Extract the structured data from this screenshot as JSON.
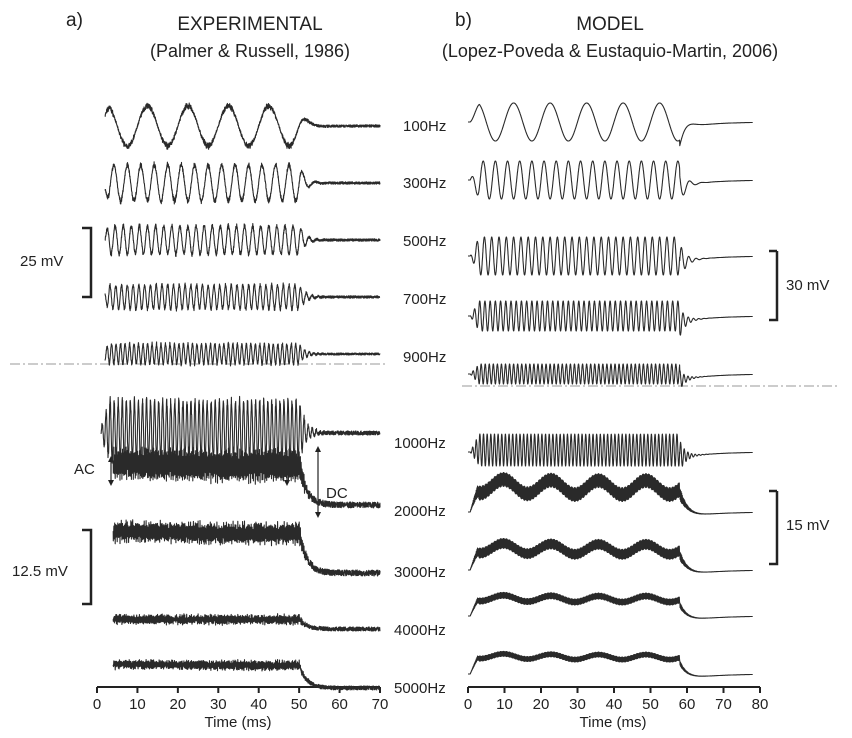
{
  "panels": [
    {
      "letter": "a)",
      "title": "EXPERIMENTAL",
      "subtitle": "(Palmer & Russell, 1986)",
      "xlabel": "Time (ms)",
      "xlim": [
        0,
        70
      ],
      "xticks": [
        0,
        10,
        20,
        30,
        40,
        50,
        60,
        70
      ],
      "scale_bars": [
        {
          "label": "25 mV",
          "value_mV": 25
        },
        {
          "label": "12.5 mV",
          "value_mV": 12.5
        }
      ],
      "annotations": [
        {
          "label": "AC"
        },
        {
          "label": "DC"
        }
      ]
    },
    {
      "letter": "b)",
      "title": "MODEL",
      "subtitle": "(Lopez-Poveda & Eustaquio-Martin, 2006)",
      "xlabel": "Time (ms)",
      "xlim": [
        0,
        80
      ],
      "xticks": [
        0,
        10,
        20,
        30,
        40,
        50,
        60,
        70,
        80
      ],
      "scale_bars": [
        {
          "label": "30 mV",
          "value_mV": 30
        },
        {
          "label": "15 mV",
          "value_mV": 15
        }
      ]
    }
  ],
  "frequency_labels": [
    "100Hz",
    "300Hz",
    "500Hz",
    "700Hz",
    "900Hz",
    "1000Hz",
    "2000Hz",
    "3000Hz",
    "4000Hz",
    "5000Hz"
  ],
  "chart_data": [
    {
      "type": "line",
      "panel": "a",
      "xlabel": "Time (ms)",
      "xlim": [
        0,
        70
      ],
      "stimulus_window_ms": [
        0,
        50
      ],
      "series": [
        {
          "name": "100Hz",
          "freq_hz": 100
        },
        {
          "name": "300Hz",
          "freq_hz": 300
        },
        {
          "name": "500Hz",
          "freq_hz": 500
        },
        {
          "name": "700Hz",
          "freq_hz": 700
        },
        {
          "name": "900Hz",
          "freq_hz": 900
        },
        {
          "name": "1000Hz",
          "freq_hz": 1000
        },
        {
          "name": "2000Hz",
          "freq_hz": 2000
        },
        {
          "name": "3000Hz",
          "freq_hz": 3000
        },
        {
          "name": "4000Hz",
          "freq_hz": 4000
        },
        {
          "name": "5000Hz",
          "freq_hz": 5000
        }
      ]
    },
    {
      "type": "line",
      "panel": "b",
      "xlabel": "Time (ms)",
      "xlim": [
        0,
        80
      ],
      "stimulus_window_ms": [
        0,
        60
      ],
      "series": [
        {
          "name": "100Hz",
          "freq_hz": 100
        },
        {
          "name": "300Hz",
          "freq_hz": 300
        },
        {
          "name": "500Hz",
          "freq_hz": 500
        },
        {
          "name": "700Hz",
          "freq_hz": 700
        },
        {
          "name": "900Hz",
          "freq_hz": 900
        },
        {
          "name": "1000Hz",
          "freq_hz": 1000
        },
        {
          "name": "2000Hz",
          "freq_hz": 2000
        },
        {
          "name": "3000Hz",
          "freq_hz": 3000
        },
        {
          "name": "4000Hz",
          "freq_hz": 4000
        },
        {
          "name": "5000Hz",
          "freq_hz": 5000
        }
      ]
    }
  ]
}
